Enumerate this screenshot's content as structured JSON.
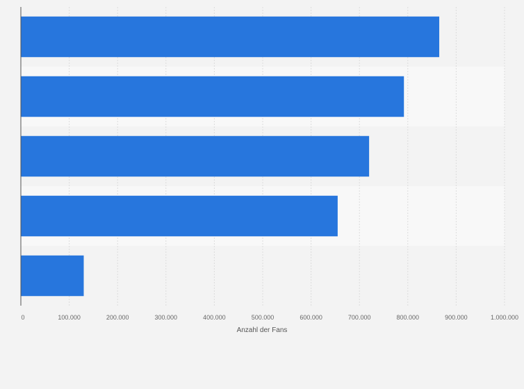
{
  "chart_data": {
    "type": "bar",
    "orientation": "horizontal",
    "categories": [
      "",
      "",
      "",
      "",
      ""
    ],
    "values": [
      865000,
      792000,
      720000,
      655000,
      130000
    ],
    "title": "",
    "xlabel": "Anzahl der Fans",
    "ylabel": "",
    "xlim": [
      0,
      1000000
    ],
    "ticks": [
      0,
      100000,
      200000,
      300000,
      400000,
      500000,
      600000,
      700000,
      800000,
      900000,
      1000000
    ],
    "tick_labels": [
      "0",
      "100.000",
      "200.000",
      "300.000",
      "400.000",
      "500.000",
      "600.000",
      "700.000",
      "800.000",
      "900.000",
      "1.000.000"
    ],
    "grid": true,
    "legend": "none",
    "colors": {
      "bar": "#2776dd",
      "band_dark": "#f3f3f3",
      "band_light": "#f8f8f8",
      "grid": "#dcdcdc",
      "axis": "#555555"
    }
  }
}
